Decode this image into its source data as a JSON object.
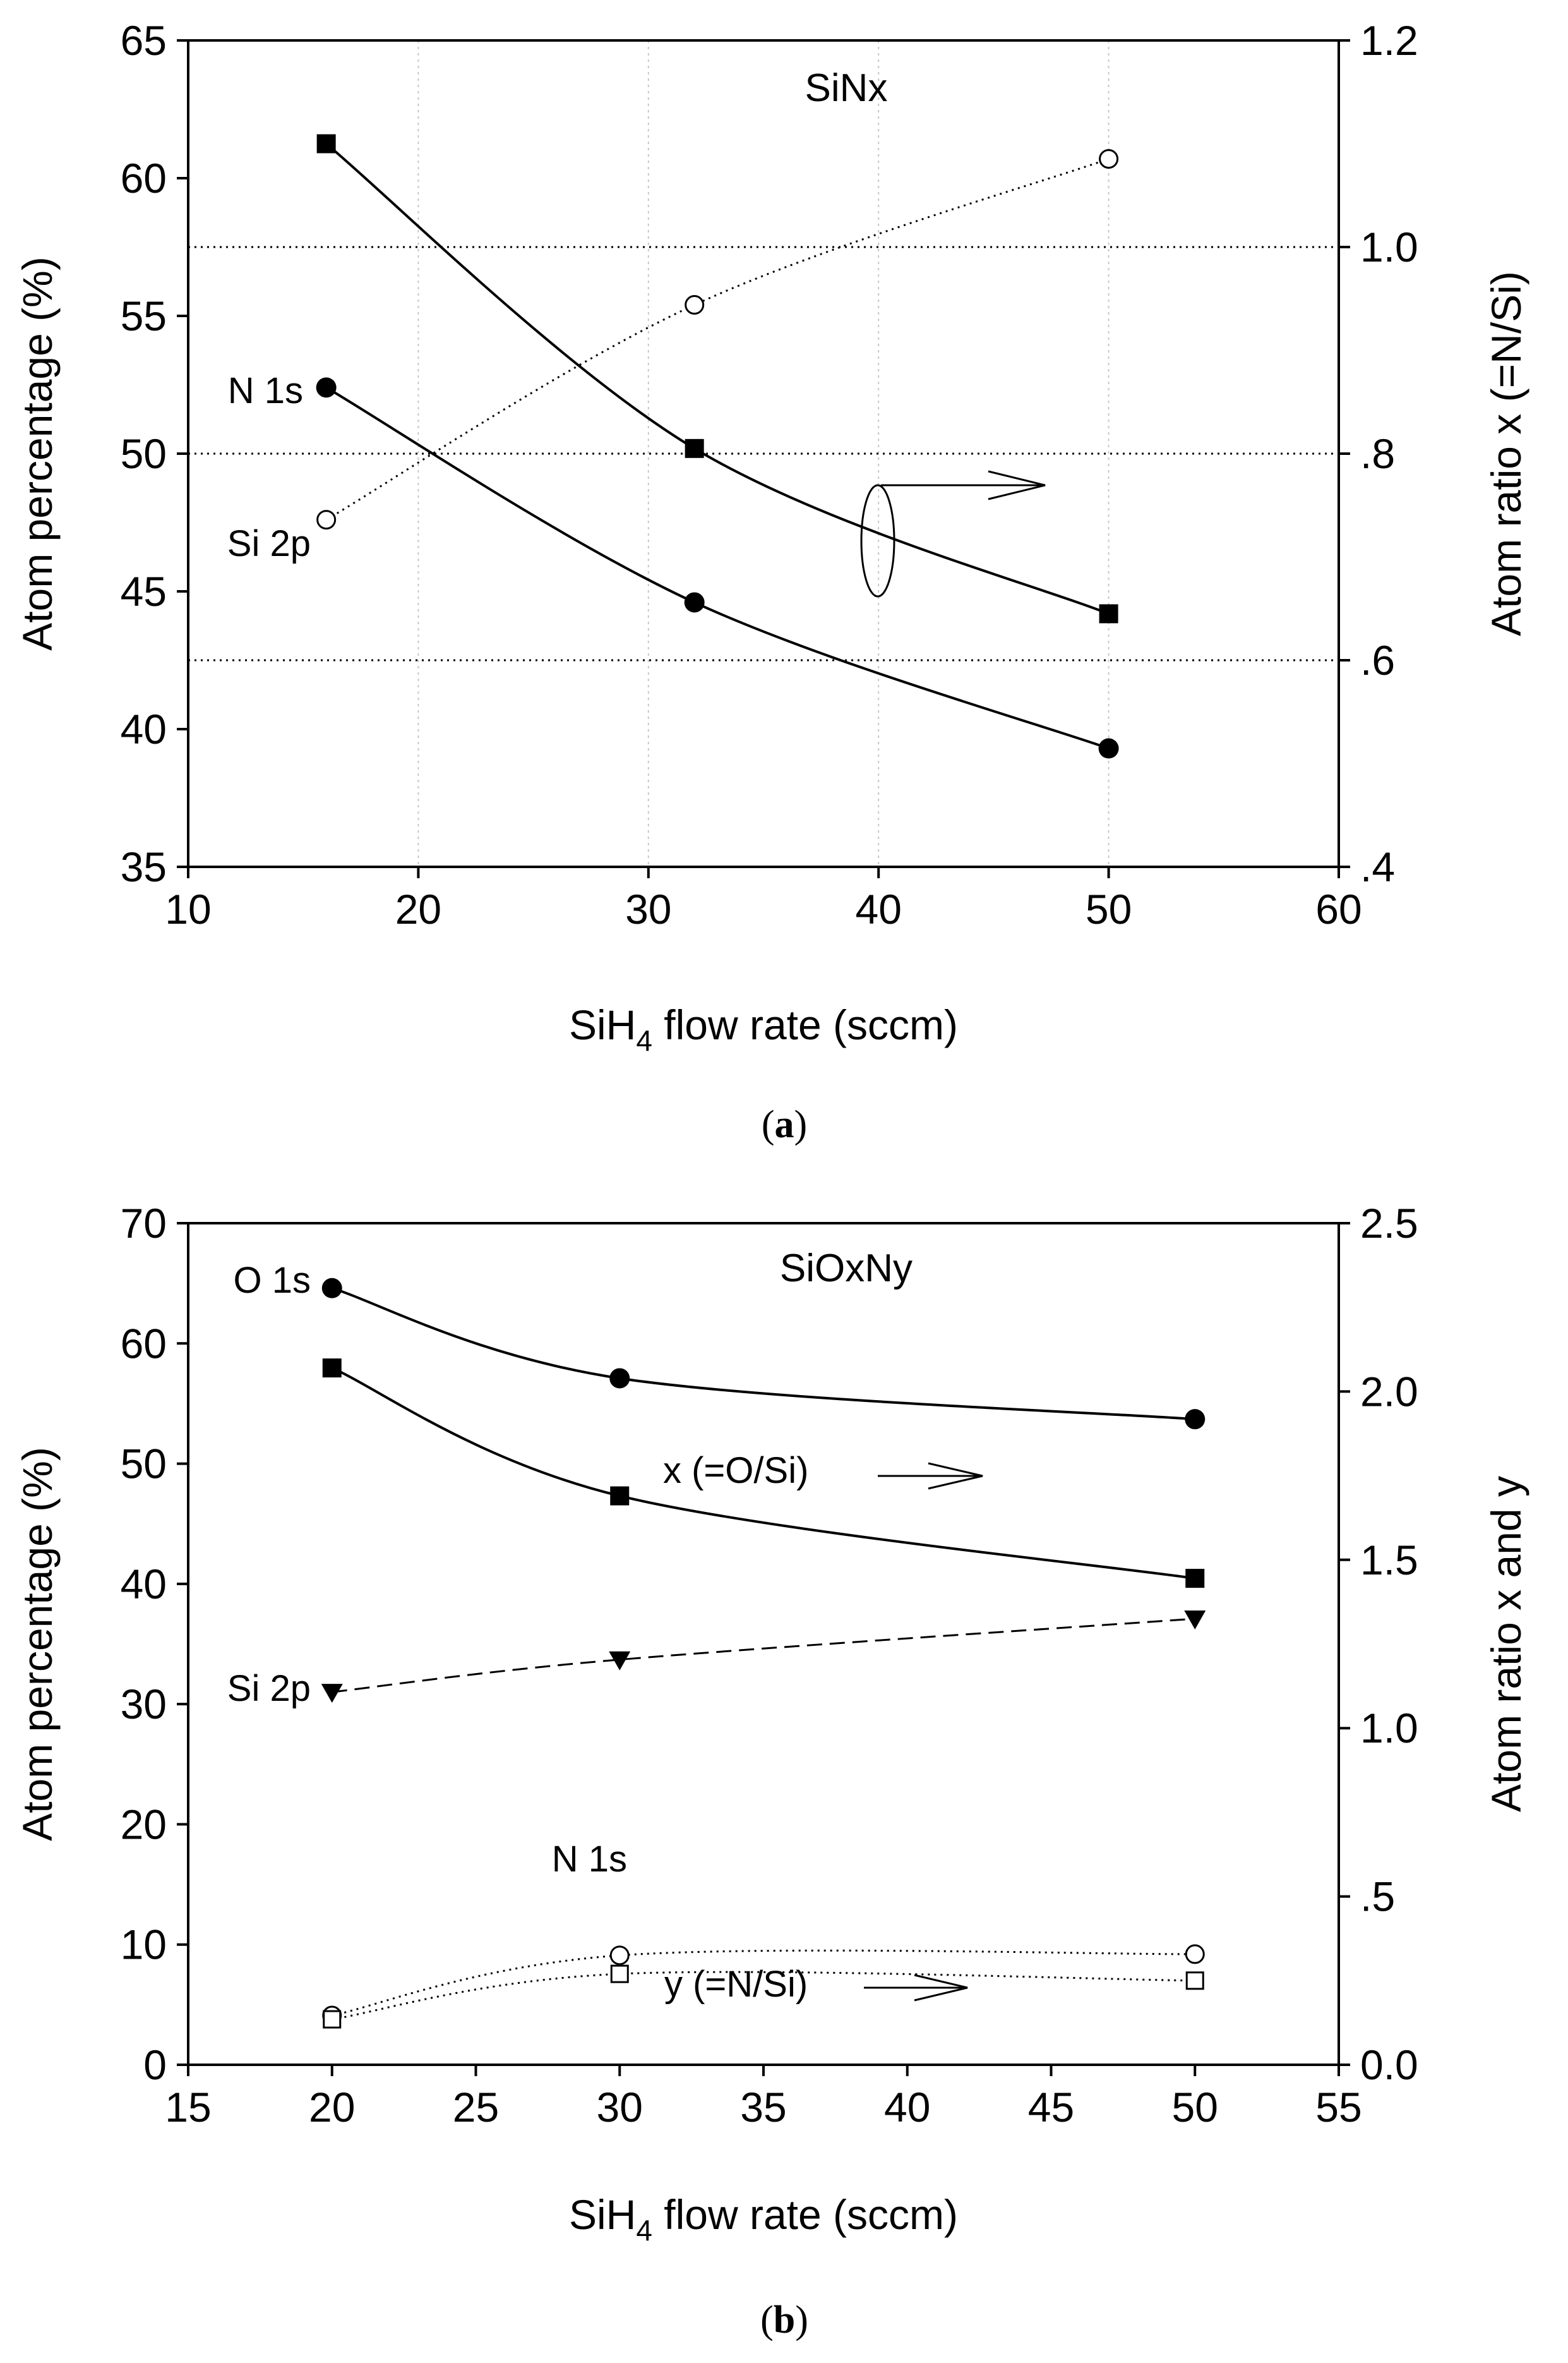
{
  "chart_data": [
    {
      "id": "a",
      "type": "line",
      "caption_open": "(",
      "caption_letter": "a",
      "caption_close": ")",
      "title": "SiNx",
      "xlabel_pre": "SiH",
      "xlabel_sub": "4",
      "xlabel_post": " flow rate (sccm)",
      "ylabel": "Atom percentage (%)",
      "y2label": "Atom ratio x (=N/Si)",
      "xlim": [
        10,
        60
      ],
      "ylim": [
        35,
        65
      ],
      "y2lim": [
        0.4,
        1.2
      ],
      "xticks": [
        10,
        20,
        30,
        40,
        50,
        60
      ],
      "yticks": [
        35,
        40,
        45,
        50,
        55,
        60,
        65
      ],
      "y2ticks": [
        {
          "value": 0.4,
          "label": ".4"
        },
        {
          "value": 0.6,
          "label": ".6"
        },
        {
          "value": 0.8,
          "label": ".8"
        },
        {
          "value": 1.0,
          "label": "1.0"
        },
        {
          "value": 1.2,
          "label": "1.2"
        }
      ],
      "vgrid": [
        20,
        30,
        40,
        50
      ],
      "hgrid_y2": [
        0.6,
        0.8,
        1.0
      ],
      "series": [
        {
          "name": "N 1s",
          "axis": "left",
          "marker": "circle-filled",
          "line": "solid",
          "x": [
            16,
            32,
            50
          ],
          "y": [
            52.4,
            44.6,
            39.3
          ]
        },
        {
          "name": "Si 2p",
          "axis": "left",
          "marker": "circle-open",
          "line": "dotted",
          "x": [
            16,
            32,
            50
          ],
          "y": [
            47.6,
            55.4,
            60.7
          ]
        },
        {
          "name": "x (=N/Si)",
          "axis": "right",
          "marker": "square-filled",
          "line": "solid",
          "x": [
            16,
            32,
            50
          ],
          "y": [
            1.1,
            0.805,
            0.645
          ]
        }
      ],
      "annotations": {
        "n1s": "N 1s",
        "si2p": "Si 2p"
      }
    },
    {
      "id": "b",
      "type": "line",
      "caption_open": "(",
      "caption_letter": "b",
      "caption_close": ")",
      "title": "SiOxNy",
      "xlabel_pre": "SiH",
      "xlabel_sub": "4",
      "xlabel_post": " flow rate (sccm)",
      "ylabel": "Atom percentage (%)",
      "y2label": "Atom ratio x and y",
      "xlim": [
        15,
        55
      ],
      "ylim": [
        0,
        70
      ],
      "y2lim": [
        0,
        2.5
      ],
      "xticks": [
        15,
        20,
        25,
        30,
        35,
        40,
        45,
        50,
        55
      ],
      "yticks": [
        0,
        10,
        20,
        30,
        40,
        50,
        60,
        70
      ],
      "y2ticks": [
        {
          "value": 0.0,
          "label": "0.0"
        },
        {
          "value": 0.5,
          "label": ".5"
        },
        {
          "value": 1.0,
          "label": "1.0"
        },
        {
          "value": 1.5,
          "label": "1.5"
        },
        {
          "value": 2.0,
          "label": "2.0"
        },
        {
          "value": 2.5,
          "label": "2.5"
        }
      ],
      "series": [
        {
          "name": "O 1s",
          "axis": "left",
          "marker": "circle-filled",
          "line": "solid",
          "x": [
            20,
            30,
            50
          ],
          "y": [
            64.6,
            57.1,
            53.7
          ]
        },
        {
          "name": "x (=O/Si)",
          "axis": "right",
          "marker": "square-filled",
          "line": "solid",
          "x": [
            20,
            30,
            50
          ],
          "y": [
            2.07,
            1.69,
            1.445
          ]
        },
        {
          "name": "Si 2p",
          "axis": "left",
          "marker": "triangle-down-filled",
          "line": "dashed",
          "x": [
            20,
            30,
            50
          ],
          "y": [
            31.0,
            33.7,
            37.1
          ]
        },
        {
          "name": "N 1s",
          "axis": "left",
          "marker": "circle-open",
          "line": "dotted",
          "x": [
            20,
            30,
            50
          ],
          "y": [
            4.1,
            9.1,
            9.2
          ]
        },
        {
          "name": "y (=N/Si)",
          "axis": "right",
          "marker": "square-open",
          "line": "dotted",
          "x": [
            20,
            30,
            50
          ],
          "y": [
            0.135,
            0.27,
            0.25
          ]
        }
      ],
      "annotations": {
        "o1s": "O 1s",
        "si2p": "Si 2p",
        "n1s": "N 1s",
        "x_ratio": "x (=O/Si)",
        "y_ratio": "y (=N/Si)"
      }
    }
  ]
}
